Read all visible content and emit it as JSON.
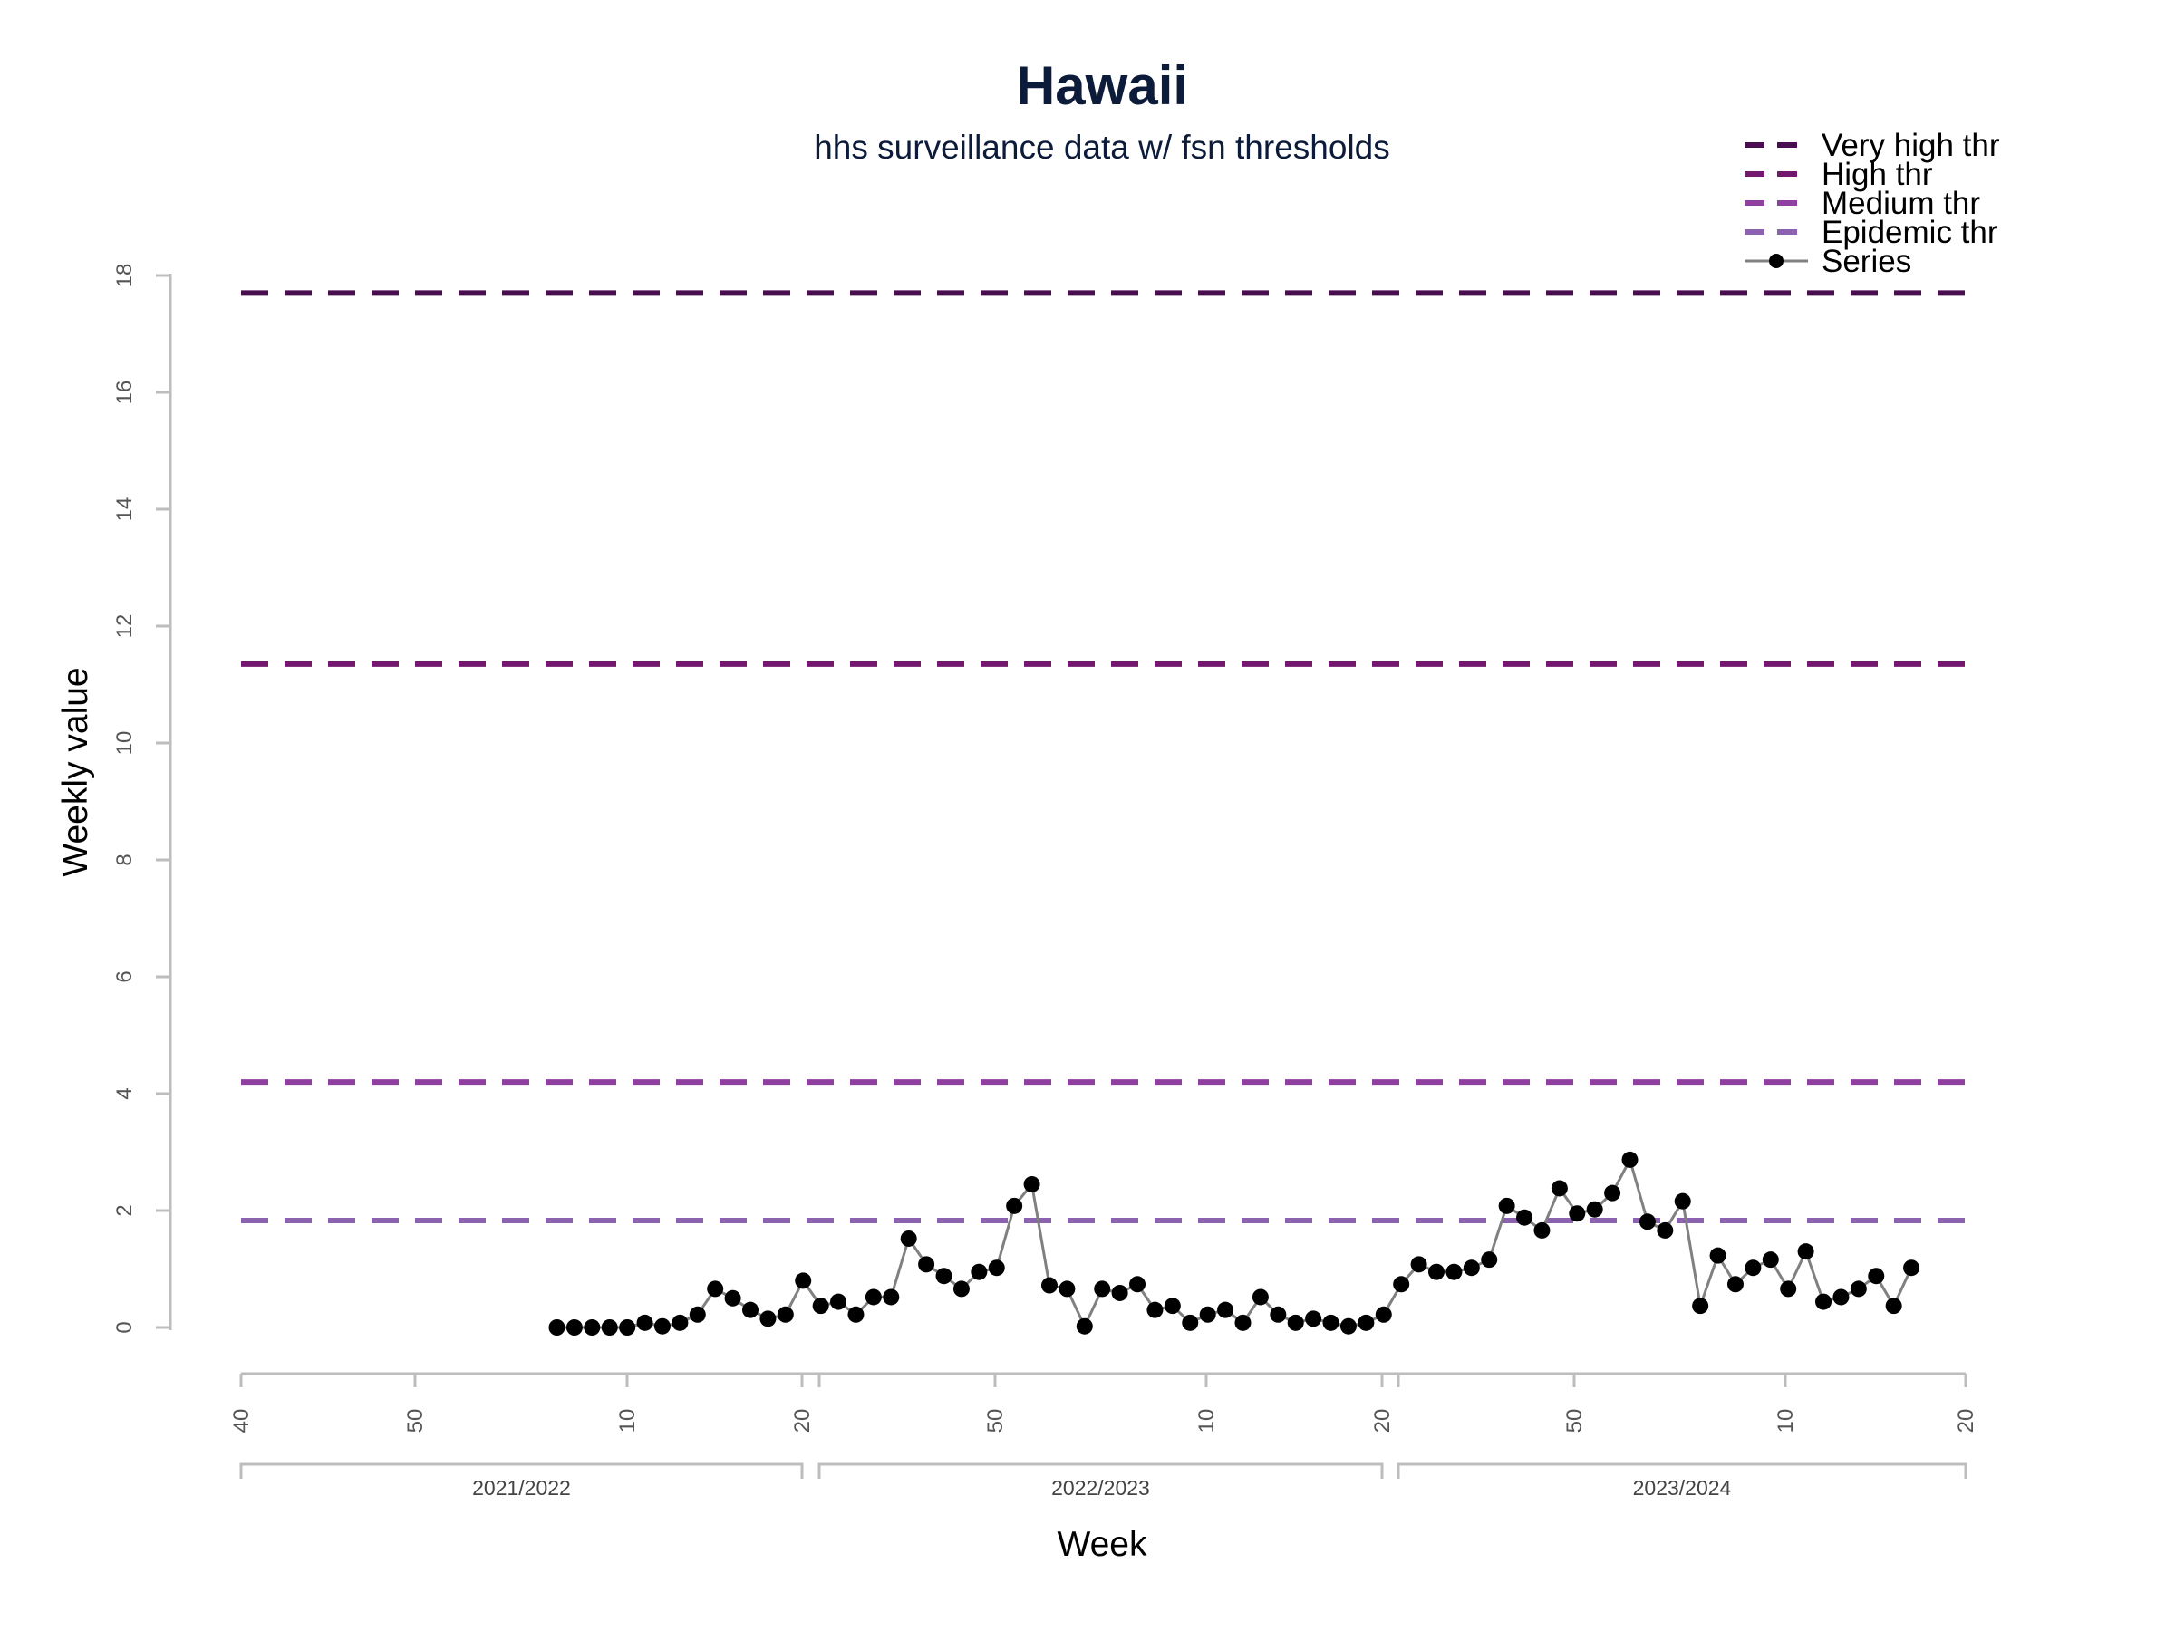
{
  "title": "Hawaii",
  "subtitle": "hhs surveillance data w/ fsn thresholds",
  "chart_data": {
    "type": "line",
    "title": "Hawaii",
    "subtitle": "hhs surveillance data w/ fsn thresholds",
    "xlabel": "Week",
    "ylabel": "Weekly value",
    "ylim": [
      0,
      18
    ],
    "y_ticks": [
      "0",
      "2",
      "4",
      "6",
      "8",
      "10",
      "12",
      "14",
      "16",
      "18"
    ],
    "x_week_ticks": [
      "40",
      "50",
      "10",
      "20",
      "50",
      "10",
      "20",
      "50",
      "10",
      "20"
    ],
    "seasons": [
      "2021/2022",
      "2022/2023",
      "2023/2024"
    ],
    "grid": false,
    "legend_position": "top-right",
    "thresholds": [
      {
        "name": "Very high thr",
        "value": 17.7,
        "color": "#4a0d4f"
      },
      {
        "name": "High thr",
        "value": 11.35,
        "color": "#74176f"
      },
      {
        "name": "Medium thr",
        "value": 4.2,
        "color": "#8e3fa0"
      },
      {
        "name": "Epidemic thr",
        "value": 1.83,
        "color": "#8b62b0"
      }
    ],
    "series": [
      {
        "name": "Series",
        "line_color": "#808080",
        "marker_color": "#000000",
        "values": [
          0,
          0,
          0,
          0,
          0,
          0.08,
          0.02,
          0.08,
          0.22,
          0.66,
          0.5,
          0.3,
          0.15,
          0.22,
          0.8,
          0.37,
          0.44,
          0.22,
          0.52,
          0.52,
          1.52,
          1.08,
          0.88,
          0.66,
          0.95,
          1.02,
          2.08,
          2.45,
          0.72,
          0.66,
          0.02,
          0.66,
          0.59,
          0.74,
          0.3,
          0.37,
          0.08,
          0.22,
          0.3,
          0.08,
          0.52,
          0.22,
          0.08,
          0.15,
          0.08,
          0.02,
          0.08,
          0.22,
          0.74,
          1.08,
          0.95,
          0.95,
          1.02,
          1.16,
          2.08,
          1.88,
          1.66,
          2.38,
          1.95,
          2.02,
          2.3,
          2.87,
          1.81,
          1.66,
          2.16,
          0.37,
          1.23,
          0.74,
          1.02,
          1.16,
          0.66,
          1.3,
          0.44,
          0.52,
          0.66,
          0.88,
          0.37,
          1.02
        ]
      }
    ]
  }
}
